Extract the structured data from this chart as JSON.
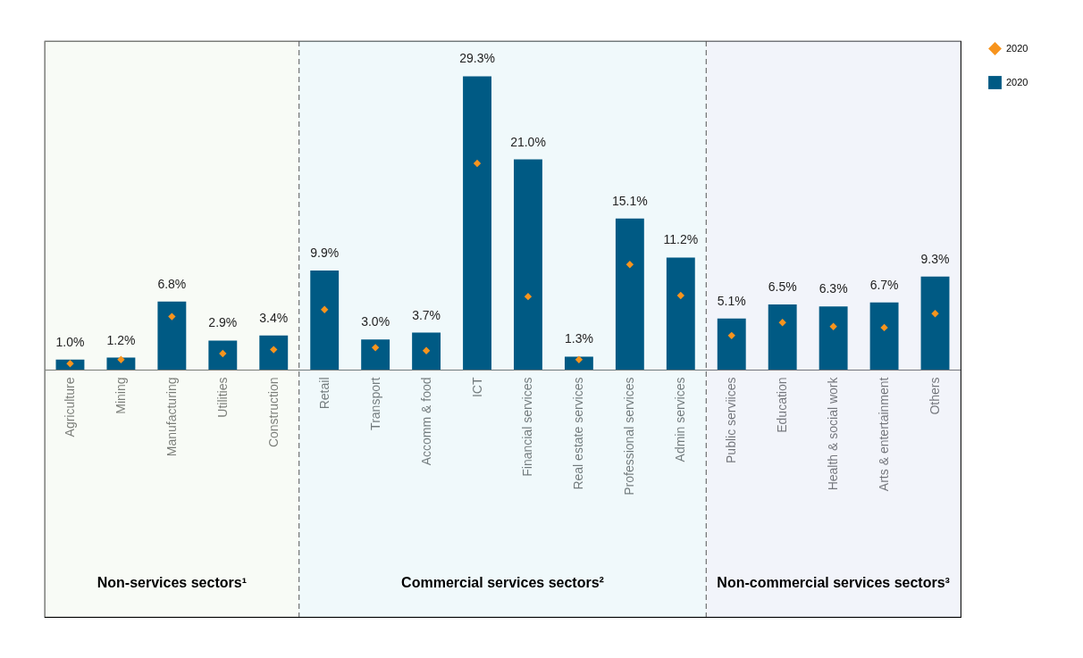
{
  "chart_data": {
    "type": "bar",
    "categories": [
      "Agriculture",
      "Mining",
      "Manufacturing",
      "Utilities",
      "Construction",
      "Retail",
      "Transport",
      "Accomm & food",
      "ICT",
      "Financial services",
      "Real estate services",
      "Professional services",
      "Admin services",
      "Public serviices",
      "Education",
      "Health & social work",
      "Arts & entertainment",
      "Others"
    ],
    "series": [
      {
        "name": "2020",
        "type": "scatter",
        "marker": "diamond",
        "color": "#f7941d",
        "values": [
          0.6,
          1.0,
          5.3,
          1.6,
          2.0,
          6.0,
          2.2,
          1.9,
          20.6,
          7.3,
          1.0,
          10.5,
          7.4,
          3.4,
          4.7,
          4.3,
          4.2,
          5.6
        ]
      },
      {
        "name": "2020",
        "type": "bar",
        "color": "#005a84",
        "values": [
          1.0,
          1.2,
          6.8,
          2.9,
          3.4,
          9.9,
          3.0,
          3.7,
          29.3,
          21.0,
          1.3,
          15.1,
          11.2,
          5.1,
          6.5,
          6.3,
          6.7,
          9.3
        ],
        "value_labels": [
          "1.0%",
          "1.2%",
          "6.8%",
          "2.9%",
          "3.4%",
          "9.9%",
          "3.0%",
          "3.7%",
          "29.3%",
          "21.0%",
          "1.3%",
          "15.1%",
          "11.2%",
          "5.1%",
          "6.5%",
          "6.3%",
          "6.7%",
          "9.3%"
        ]
      }
    ],
    "bands": [
      {
        "axis": "x",
        "from": "Agriculture",
        "to": "Construction",
        "label": "Non-services sectors¹",
        "color": "#f2f7ee"
      },
      {
        "axis": "x",
        "from": "Retail",
        "to": "Admin services",
        "label": "Commercial services sectors²",
        "color": "#e2f3f7"
      },
      {
        "axis": "x",
        "from": "Public serviices",
        "to": "Others",
        "label": "Non-commercial services sectors³",
        "color": "#e5e9f5"
      }
    ],
    "legend": "top right",
    "tick_labels": "x"
  }
}
